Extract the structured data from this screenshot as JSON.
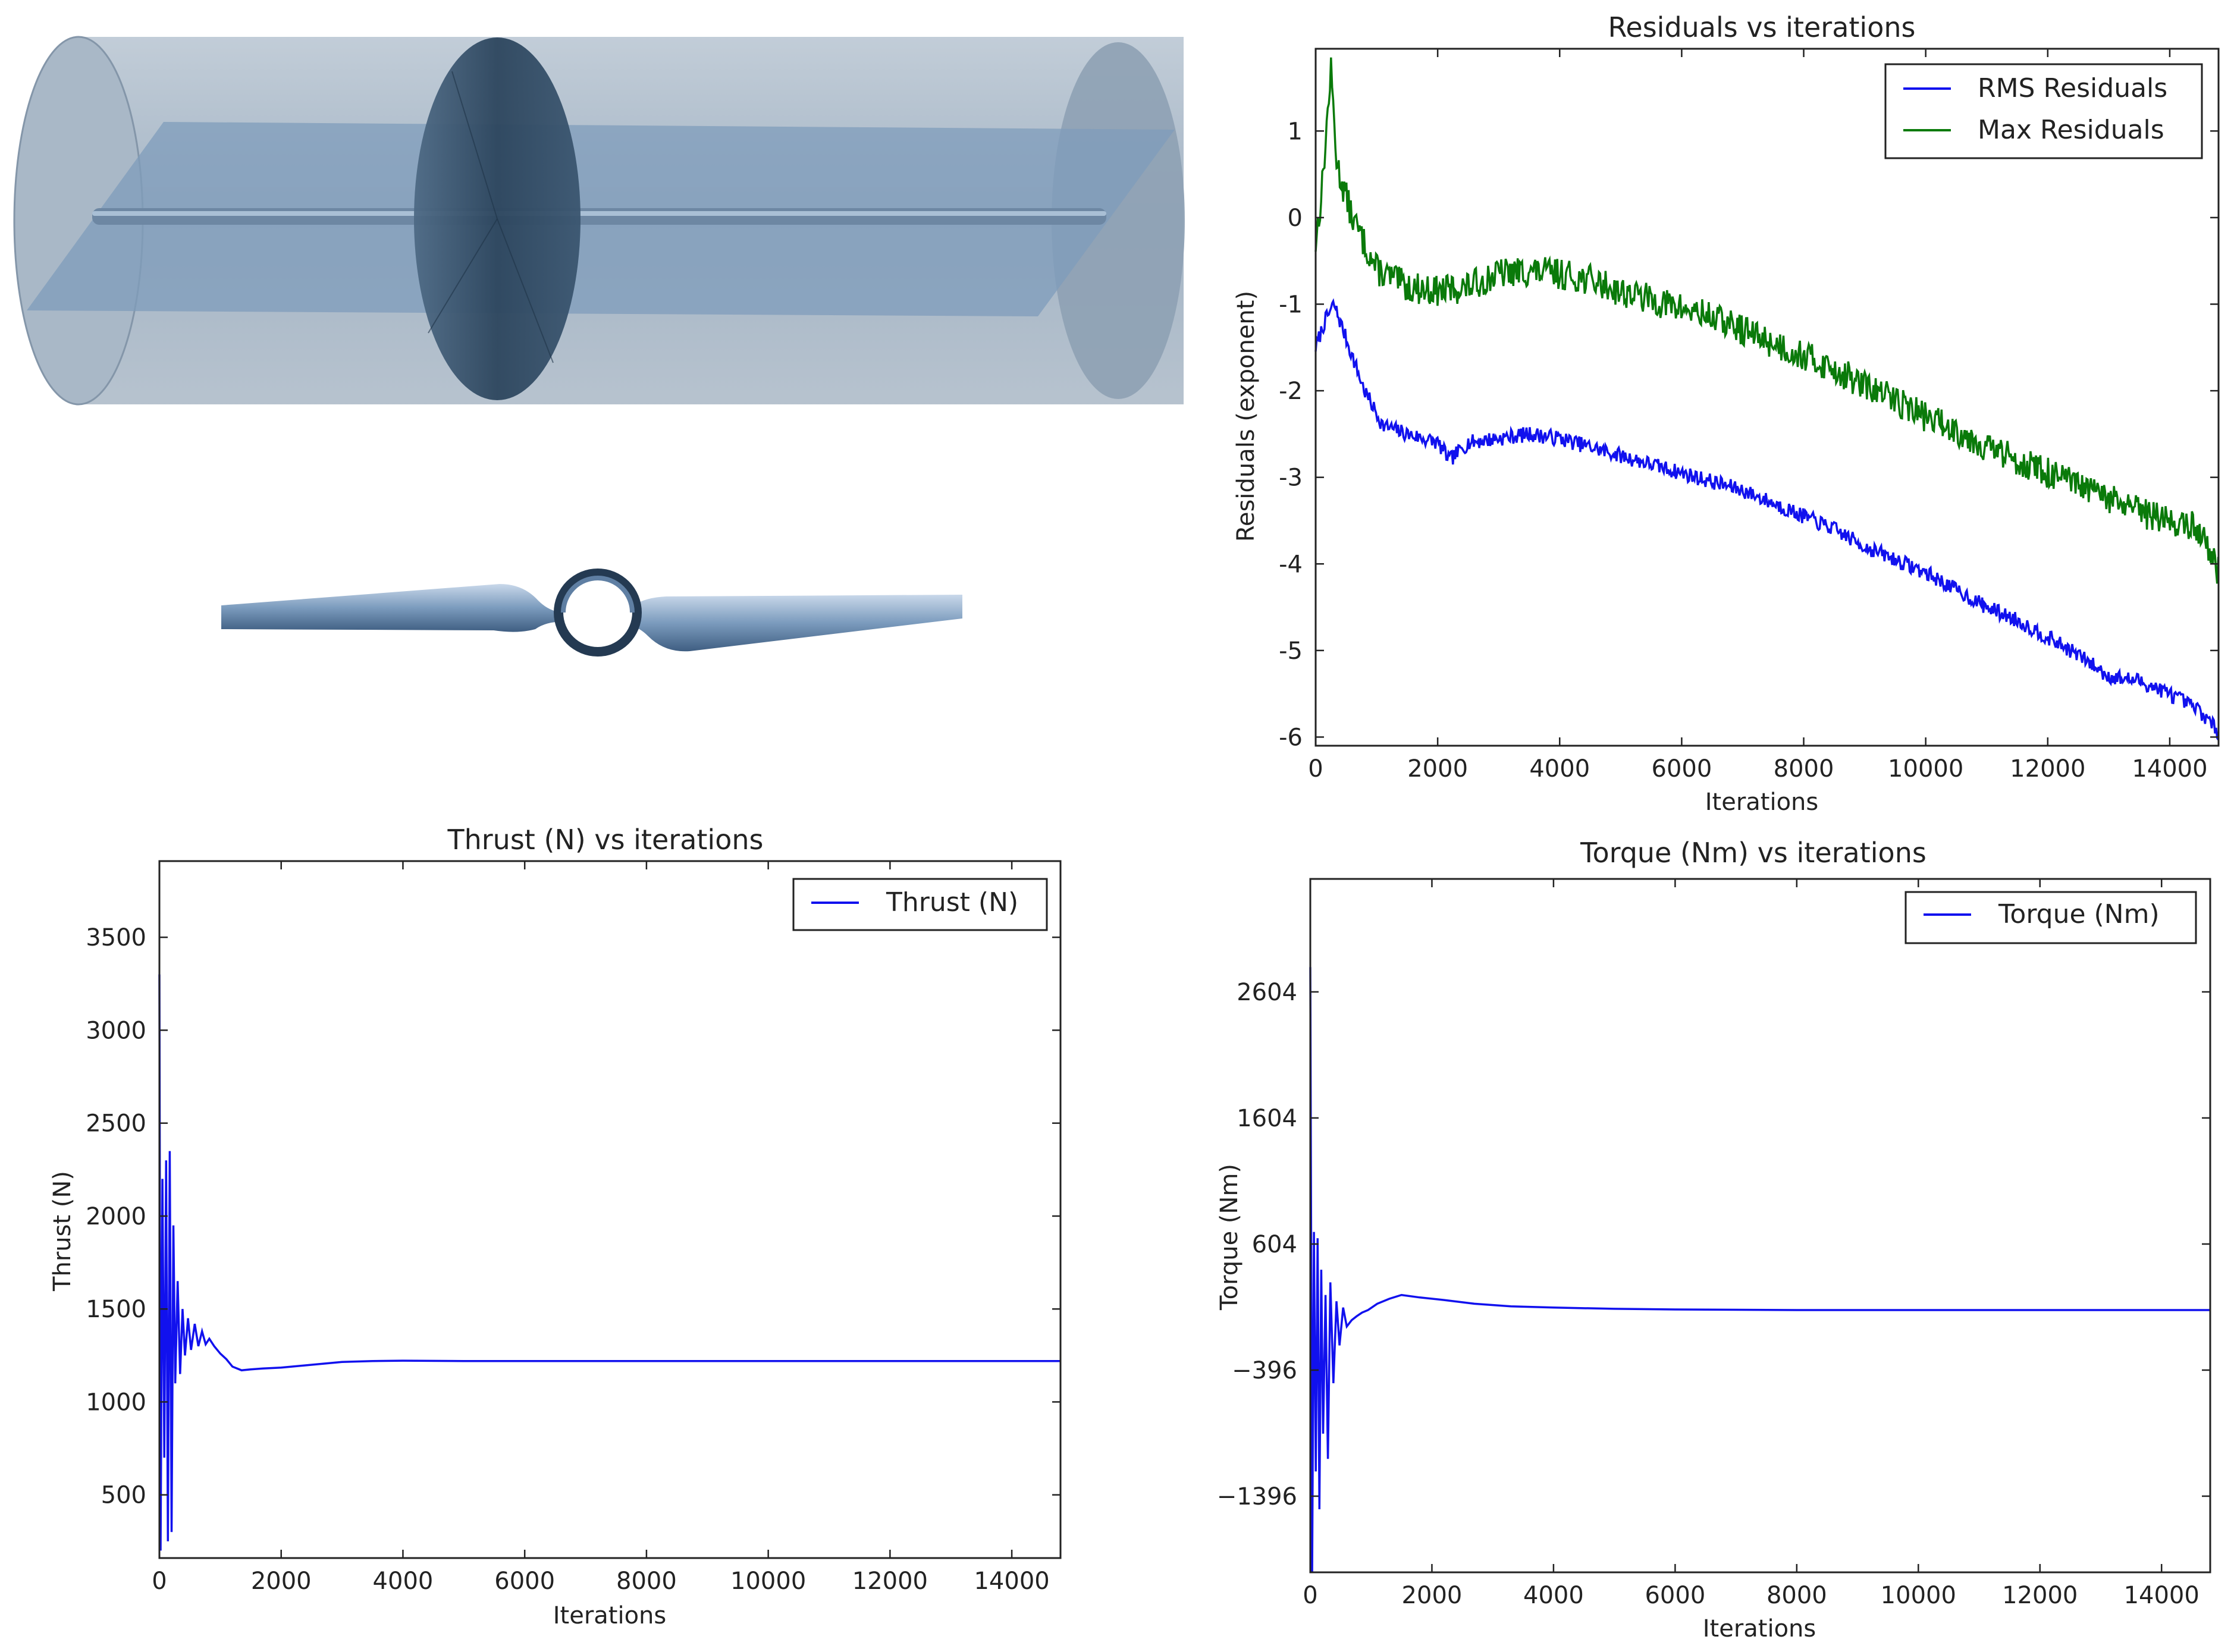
{
  "colors": {
    "rms": "#1111ee",
    "max": "#0a7a0a",
    "cylinder": "#8fa3b8",
    "disk": "#2f4a63",
    "blade": "#6f8fb3"
  },
  "geometry_figure": {
    "icon": "propeller-cylinder-render"
  },
  "chart_data": [
    {
      "id": "residuals",
      "type": "line",
      "title": "Residuals vs iterations",
      "xlabel": "Iterations",
      "ylabel": "Residuals (exponent)",
      "xlim": [
        0,
        14800
      ],
      "ylim": [
        -6.1,
        1.95
      ],
      "xticks": [
        0,
        2000,
        4000,
        6000,
        8000,
        10000,
        12000,
        14000
      ],
      "yticks": [
        -6,
        -5,
        -4,
        -3,
        -2,
        -1,
        0,
        1
      ],
      "legend": "top-right",
      "grid": false,
      "series": [
        {
          "name": "RMS Residuals",
          "color": "#1111ee",
          "noise": 0.09,
          "seed": 7,
          "x": [
            0,
            150,
            300,
            500,
            800,
            1100,
            1500,
            2000,
            2200,
            2500,
            3000,
            3500,
            4000,
            4500,
            5000,
            5500,
            6000,
            6500,
            7000,
            7500,
            8000,
            8500,
            9000,
            9500,
            10000,
            10500,
            11000,
            11500,
            12000,
            12500,
            13000,
            13500,
            14000,
            14500,
            14800
          ],
          "y": [
            -1.5,
            -1.2,
            -1.0,
            -1.4,
            -2.0,
            -2.4,
            -2.5,
            -2.6,
            -2.8,
            -2.6,
            -2.55,
            -2.5,
            -2.55,
            -2.65,
            -2.75,
            -2.85,
            -2.95,
            -3.05,
            -3.15,
            -3.3,
            -3.45,
            -3.6,
            -3.8,
            -3.95,
            -4.1,
            -4.3,
            -4.5,
            -4.65,
            -4.85,
            -5.05,
            -5.3,
            -5.35,
            -5.5,
            -5.7,
            -5.95
          ]
        },
        {
          "name": "Max Residuals",
          "color": "#0a7a0a",
          "noise": 0.18,
          "seed": 13,
          "x": [
            0,
            100,
            250,
            350,
            600,
            1000,
            1500,
            2000,
            2500,
            3000,
            3500,
            4000,
            4500,
            5000,
            5500,
            6000,
            6500,
            7000,
            7500,
            8000,
            8500,
            9000,
            9500,
            10000,
            10500,
            11000,
            11500,
            12000,
            12500,
            13000,
            13500,
            14000,
            14500,
            14800
          ],
          "y": [
            -0.3,
            0.3,
            1.7,
            0.6,
            0.0,
            -0.6,
            -0.8,
            -0.85,
            -0.8,
            -0.65,
            -0.62,
            -0.65,
            -0.72,
            -0.85,
            -0.95,
            -1.05,
            -1.15,
            -1.3,
            -1.45,
            -1.6,
            -1.75,
            -1.95,
            -2.1,
            -2.3,
            -2.45,
            -2.65,
            -2.8,
            -2.95,
            -3.1,
            -3.25,
            -3.4,
            -3.5,
            -3.6,
            -4.1
          ]
        }
      ]
    },
    {
      "id": "thrust",
      "type": "line",
      "title": "Thrust (N) vs iterations",
      "xlabel": "Iterations",
      "ylabel": "Thrust (N)",
      "xlim": [
        0,
        14800
      ],
      "ylim": [
        160,
        3910
      ],
      "xticks": [
        0,
        2000,
        4000,
        6000,
        8000,
        10000,
        12000,
        14000
      ],
      "yticks": [
        500,
        1000,
        1500,
        2000,
        2500,
        3000,
        3500
      ],
      "legend": "top-right",
      "grid": false,
      "series": [
        {
          "name": "Thrust (N)",
          "color": "#1111ee",
          "x": [
            0,
            20,
            50,
            80,
            110,
            140,
            170,
            200,
            230,
            260,
            300,
            340,
            380,
            420,
            470,
            520,
            580,
            640,
            700,
            760,
            820,
            900,
            1000,
            1100,
            1200,
            1350,
            1500,
            1700,
            2000,
            2500,
            3000,
            3500,
            4000,
            5000,
            6000,
            8000,
            10000,
            12000,
            14800
          ],
          "y": [
            3300,
            200,
            2200,
            700,
            2300,
            250,
            2350,
            300,
            1950,
            1100,
            1650,
            1150,
            1500,
            1250,
            1450,
            1280,
            1420,
            1300,
            1380,
            1310,
            1340,
            1300,
            1260,
            1230,
            1190,
            1170,
            1175,
            1180,
            1185,
            1200,
            1215,
            1220,
            1222,
            1220,
            1220,
            1220,
            1220,
            1220,
            1220
          ]
        }
      ]
    },
    {
      "id": "torque",
      "type": "line",
      "title": "Torque (Nm) vs iterations",
      "xlabel": "Iterations",
      "ylabel": "Torque (Nm)",
      "xlim": [
        0,
        14800
      ],
      "ylim": [
        -2000,
        3500
      ],
      "xticks": [
        0,
        2000,
        4000,
        6000,
        8000,
        10000,
        12000,
        14000
      ],
      "yticks": [
        -1396,
        -396,
        604,
        1604,
        2604
      ],
      "ytick_labels": [
        "−1396",
        "−396",
        "604",
        "1604",
        "2604"
      ],
      "legend": "top-right",
      "grid": false,
      "series": [
        {
          "name": "Torque (Nm)",
          "color": "#1111ee",
          "x": [
            0,
            30,
            60,
            90,
            120,
            150,
            180,
            210,
            250,
            290,
            330,
            380,
            430,
            480,
            540,
            600,
            680,
            760,
            850,
            950,
            1100,
            1300,
            1500,
            1800,
            2200,
            2700,
            3300,
            4000,
            5000,
            6000,
            8000,
            10000,
            12000,
            14800
          ],
          "y": [
            2800,
            -2000,
            700,
            -1200,
            650,
            -1500,
            400,
            -900,
            200,
            -1100,
            300,
            -500,
            150,
            -200,
            100,
            -50,
            0,
            30,
            60,
            80,
            130,
            170,
            200,
            180,
            160,
            130,
            110,
            100,
            90,
            85,
            80,
            80,
            80,
            80
          ]
        }
      ]
    }
  ]
}
